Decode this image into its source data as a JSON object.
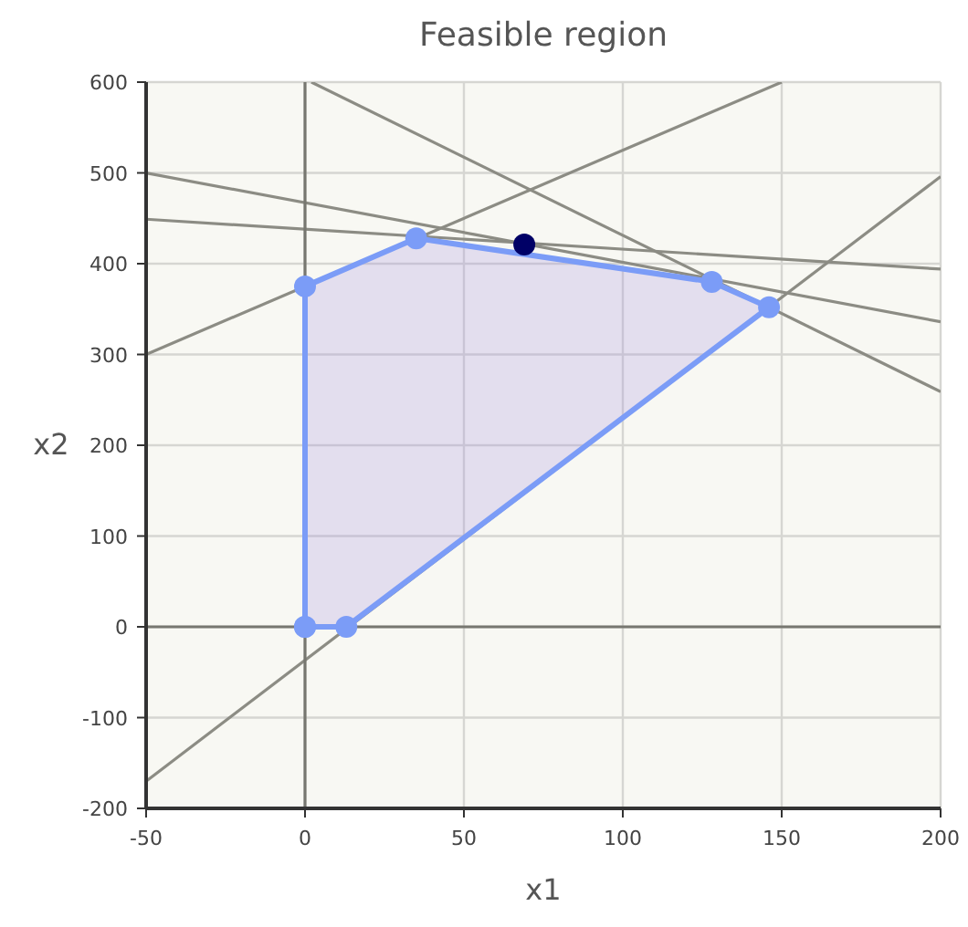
{
  "chart_data": {
    "type": "line",
    "title": "Feasible region",
    "xlabel": "x1",
    "ylabel": "x2",
    "xlim": [
      -50,
      200
    ],
    "ylim": [
      -200,
      600
    ],
    "xticks": [
      -50,
      0,
      50,
      100,
      150,
      200
    ],
    "yticks": [
      -200,
      -100,
      0,
      100,
      200,
      300,
      400,
      500,
      600
    ],
    "grid": true,
    "series": [
      {
        "color": "#8c8c84",
        "x": [
          -50,
          200
        ],
        "values": [
          -170,
          496
        ]
      },
      {
        "color": "#8c8c84",
        "x": [
          -50,
          150
        ],
        "values": [
          300,
          600
        ]
      },
      {
        "color": "#8c8c84",
        "x": [
          -50,
          200
        ],
        "values": [
          500,
          336
        ]
      },
      {
        "color": "#8c8c84",
        "x": [
          -50,
          200
        ],
        "values": [
          449,
          394
        ]
      },
      {
        "color": "#8c8c84",
        "x": [
          2,
          200
        ],
        "values": [
          600,
          259
        ]
      },
      {
        "color": "#777770",
        "x": [
          0,
          0
        ],
        "values": [
          -200,
          600
        ]
      },
      {
        "color": "#777770",
        "x": [
          -50,
          200
        ],
        "values": [
          0,
          0
        ]
      },
      {
        "type": "area",
        "color": "#7b9cf7",
        "marker": "circle",
        "x": [
          0,
          13,
          146,
          128,
          35,
          0,
          0
        ],
        "values": [
          0,
          0,
          352,
          380,
          428,
          375,
          0
        ]
      },
      {
        "type": "scatter",
        "color": "#000066",
        "marker": "circle",
        "x": [
          69
        ],
        "values": [
          421
        ]
      }
    ]
  }
}
